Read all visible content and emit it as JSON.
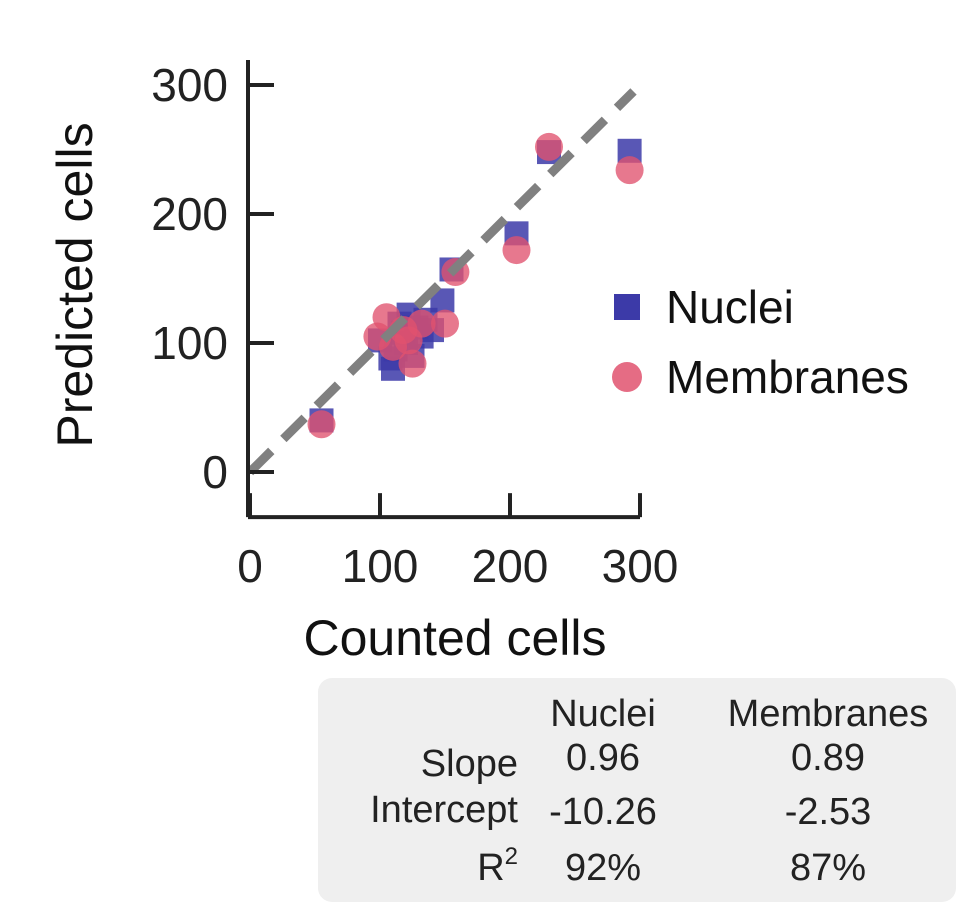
{
  "chart_data": {
    "type": "scatter",
    "xlabel": "Counted cells",
    "ylabel": "Predicted cells",
    "xlim": [
      0,
      300
    ],
    "ylim": [
      -35,
      300
    ],
    "x_ticks": [
      "0",
      "100",
      "200",
      "300"
    ],
    "y_ticks": [
      "0",
      "100",
      "200",
      "300"
    ],
    "x_tick_values": [
      0,
      100,
      200,
      300
    ],
    "y_tick_values": [
      0,
      100,
      200,
      300
    ],
    "reference_line": {
      "style": "dashed",
      "color": "#808080",
      "from": [
        0,
        0
      ],
      "to": [
        295,
        295
      ]
    },
    "legend_position": "right",
    "grid": false,
    "series": [
      {
        "name": "Nuclei",
        "marker": "square",
        "color": "#3c3aa8",
        "points": [
          [
            55,
            40
          ],
          [
            100,
            102
          ],
          [
            108,
            88
          ],
          [
            110,
            80
          ],
          [
            112,
            95
          ],
          [
            115,
            115
          ],
          [
            118,
            108
          ],
          [
            120,
            100
          ],
          [
            122,
            122
          ],
          [
            125,
            90
          ],
          [
            128,
            112
          ],
          [
            132,
            105
          ],
          [
            135,
            118
          ],
          [
            140,
            110
          ],
          [
            148,
            133
          ],
          [
            155,
            157
          ],
          [
            205,
            185
          ],
          [
            230,
            248
          ],
          [
            292,
            249
          ]
        ]
      },
      {
        "name": "Membranes",
        "marker": "circle",
        "color": "#e0526e",
        "points": [
          [
            55,
            37
          ],
          [
            98,
            105
          ],
          [
            105,
            120
          ],
          [
            110,
            97
          ],
          [
            118,
            110
          ],
          [
            122,
            102
          ],
          [
            125,
            84
          ],
          [
            132,
            115
          ],
          [
            150,
            115
          ],
          [
            158,
            155
          ],
          [
            205,
            172
          ],
          [
            230,
            252
          ],
          [
            292,
            234
          ]
        ]
      }
    ]
  },
  "stats_table": {
    "columns": [
      "Nuclei",
      "Membranes"
    ],
    "rows": [
      {
        "label": "Slope",
        "values": [
          "0.96",
          "0.89"
        ]
      },
      {
        "label": "Intercept",
        "values": [
          "-10.26",
          "-2.53"
        ]
      },
      {
        "label_base": "R",
        "label_sup": "2",
        "values": [
          "92%",
          "87%"
        ]
      }
    ]
  }
}
